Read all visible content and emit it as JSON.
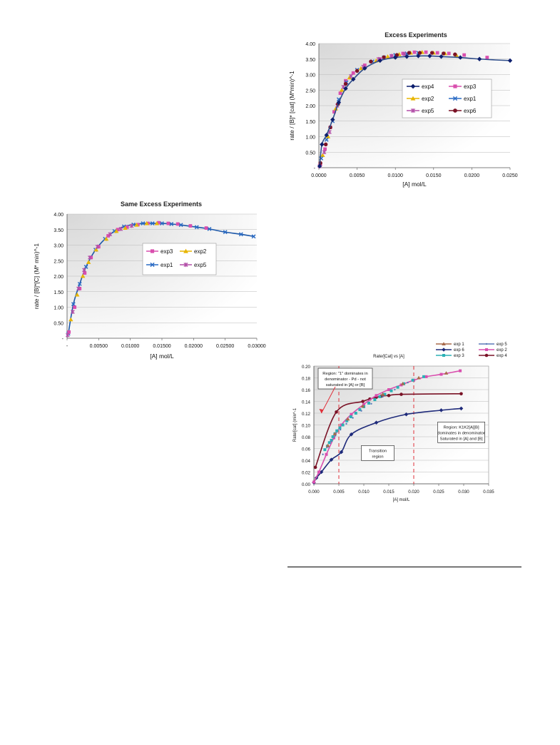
{
  "colors": {
    "exp1": "#2a6bc4",
    "exp2": "#e8b500",
    "exp3": "#d94fae",
    "exp4": "#0d1f6e",
    "exp5": "#b34fa8",
    "exp6": "#7a1226",
    "exp1_rate": "#a86a4a",
    "exp2_rate": "#d94fae",
    "exp3_rate": "#2bb0b5",
    "exp4_rate": "#7a1226",
    "exp5_rate": "#5b7ab8",
    "exp6_rate": "#1e2a7a",
    "excess_line": "#2e4d8a",
    "same_line": "#1c57a8",
    "annotation": "#e0303a",
    "plot_bg": "#d8d8d8"
  },
  "chart_data": [
    {
      "id": "excess",
      "type": "line",
      "title": "Excess Experiments",
      "xlabel": "[A] mol/L",
      "ylabel": "rate / [B]* [cat] (M*min)^-1",
      "xlim": [
        0,
        0.025
      ],
      "ylim": [
        0,
        4.0
      ],
      "xticks": [
        0,
        0.005,
        0.01,
        0.015,
        0.02,
        0.025
      ],
      "xtick_labels": [
        "0.0000",
        "0.0050",
        "0.0100",
        "0.0150",
        "0.0200",
        "0.0250"
      ],
      "yticks": [
        0,
        0.5,
        1.0,
        1.5,
        2.0,
        2.5,
        3.0,
        3.5,
        4.0
      ],
      "ytick_labels": [
        "-",
        "0.50",
        "1.00",
        "1.50",
        "2.00",
        "2.50",
        "3.00",
        "3.50",
        "4.00"
      ],
      "grid": true,
      "legend_position": "center-right",
      "legend": [
        {
          "label": "exp4",
          "color_key": "exp4",
          "marker": "diamond"
        },
        {
          "label": "exp3",
          "color_key": "exp3",
          "marker": "square"
        },
        {
          "label": "exp2",
          "color_key": "exp2",
          "marker": "triangle"
        },
        {
          "label": "exp1",
          "color_key": "exp1",
          "marker": "x"
        },
        {
          "label": "exp5",
          "color_key": "exp5",
          "marker": "star"
        },
        {
          "label": "exp6",
          "color_key": "exp6",
          "marker": "circle"
        }
      ],
      "series": [
        {
          "name": "exp3",
          "color_key": "exp3",
          "marker": "square",
          "x": [
            0.0002,
            0.0008,
            0.0015,
            0.002,
            0.0028,
            0.0035,
            0.0045,
            0.006,
            0.008,
            0.0095,
            0.011,
            0.0125,
            0.014,
            0.0155,
            0.017,
            0.019,
            0.022
          ],
          "y": [
            0.1,
            0.6,
            1.3,
            1.8,
            2.4,
            2.8,
            3.05,
            3.3,
            3.5,
            3.6,
            3.68,
            3.72,
            3.72,
            3.7,
            3.68,
            3.63,
            3.55
          ]
        },
        {
          "name": "exp2",
          "color_key": "exp2",
          "marker": "triangle",
          "x": [
            0.0005,
            0.0012,
            0.0022,
            0.003,
            0.004,
            0.0055,
            0.0075,
            0.009,
            0.0105,
            0.012,
            0.0135,
            0.015,
            0.0165,
            0.018
          ],
          "y": [
            0.4,
            1.0,
            1.9,
            2.5,
            2.9,
            3.2,
            3.45,
            3.58,
            3.65,
            3.7,
            3.72,
            3.7,
            3.68,
            3.62
          ]
        },
        {
          "name": "exp1",
          "color_key": "exp1",
          "marker": "x",
          "x": [
            0.0003,
            0.001,
            0.0018,
            0.0026,
            0.0036,
            0.005,
            0.007,
            0.0085,
            0.01,
            0.0115,
            0.013
          ],
          "y": [
            0.3,
            0.9,
            1.5,
            2.2,
            2.75,
            3.15,
            3.42,
            3.55,
            3.63,
            3.68,
            3.7
          ]
        },
        {
          "name": "exp5",
          "color_key": "exp5",
          "marker": "star",
          "x": [
            0.0001,
            0.0007,
            0.0014,
            0.0024,
            0.0032,
            0.0042,
            0.0058,
            0.0078,
            0.0095,
            0.0112
          ],
          "y": [
            0.05,
            0.5,
            1.15,
            2.0,
            2.6,
            2.95,
            3.25,
            3.5,
            3.6,
            3.66
          ]
        },
        {
          "name": "exp6",
          "color_key": "exp6",
          "marker": "circle",
          "x": [
            0.0002,
            0.0009,
            0.0015,
            0.0025,
            0.0035,
            0.005,
            0.0068,
            0.0085,
            0.0102,
            0.0118,
            0.0132,
            0.0148,
            0.0163,
            0.0178
          ],
          "y": [
            0.15,
            0.75,
            1.3,
            2.05,
            2.7,
            3.12,
            3.42,
            3.56,
            3.63,
            3.7,
            3.7,
            3.7,
            3.68,
            3.65
          ]
        },
        {
          "name": "exp4",
          "color_key": "exp4",
          "marker": "diamond",
          "line": true,
          "x": [
            0.0001,
            0.0004,
            0.001,
            0.0018,
            0.0026,
            0.0035,
            0.0045,
            0.006,
            0.008,
            0.01,
            0.0115,
            0.013,
            0.0145,
            0.016,
            0.0185,
            0.021,
            0.025
          ],
          "y": [
            0.05,
            0.75,
            1.05,
            1.55,
            2.1,
            2.55,
            2.85,
            3.2,
            3.45,
            3.55,
            3.58,
            3.6,
            3.6,
            3.58,
            3.55,
            3.5,
            3.45
          ]
        }
      ]
    },
    {
      "id": "same",
      "type": "line",
      "title": "Same Excess Experiments",
      "xlabel": "[A] mol/L",
      "ylabel": "rate / [B]*[C]  (M* min)^-1",
      "xlim": [
        0,
        0.03
      ],
      "ylim": [
        0,
        4.0
      ],
      "xticks": [
        0,
        0.005,
        0.01,
        0.015,
        0.02,
        0.025,
        0.03
      ],
      "xtick_labels": [
        "-",
        "0.00500",
        "0.01000",
        "0.01500",
        "0.02000",
        "0.02500",
        "0.03000"
      ],
      "yticks": [
        0,
        0.5,
        1.0,
        1.5,
        2.0,
        2.5,
        3.0,
        3.5,
        4.0
      ],
      "ytick_labels": [
        "-",
        "0.50",
        "1.00",
        "1.50",
        "2.00",
        "2.50",
        "3.00",
        "3.50",
        "4.00"
      ],
      "grid": true,
      "legend_position": "center-right",
      "legend": [
        {
          "label": "exp3",
          "color_key": "exp3",
          "marker": "square"
        },
        {
          "label": "exp2",
          "color_key": "exp2",
          "marker": "triangle"
        },
        {
          "label": "exp1",
          "color_key": "exp1",
          "marker": "x"
        },
        {
          "label": "exp5",
          "color_key": "exp5",
          "marker": "star"
        }
      ],
      "series": [
        {
          "name": "exp1",
          "color_key": "exp1",
          "marker": "x",
          "line": true,
          "x": [
            0.0002,
            0.001,
            0.002,
            0.003,
            0.0045,
            0.006,
            0.0075,
            0.009,
            0.0105,
            0.012,
            0.0135,
            0.015,
            0.0165,
            0.018,
            0.0205,
            0.0225,
            0.025,
            0.0275,
            0.0295
          ],
          "y": [
            0.15,
            1.1,
            1.75,
            2.3,
            2.85,
            3.2,
            3.45,
            3.6,
            3.66,
            3.7,
            3.7,
            3.7,
            3.68,
            3.65,
            3.58,
            3.52,
            3.42,
            3.35,
            3.28
          ]
        },
        {
          "name": "exp3",
          "color_key": "exp3",
          "marker": "square",
          "x": [
            0.0003,
            0.0012,
            0.002,
            0.0028,
            0.0038,
            0.005,
            0.0065,
            0.008,
            0.0095,
            0.0112,
            0.0128,
            0.0145,
            0.016,
            0.0175,
            0.0195,
            0.022
          ],
          "y": [
            0.2,
            1.0,
            1.6,
            2.1,
            2.6,
            2.95,
            3.3,
            3.5,
            3.58,
            3.66,
            3.7,
            3.72,
            3.7,
            3.68,
            3.62,
            3.55
          ]
        },
        {
          "name": "exp2",
          "color_key": "exp2",
          "marker": "triangle",
          "x": [
            0.0006,
            0.0016,
            0.0025,
            0.0034,
            0.0046,
            0.0062,
            0.0078,
            0.0092,
            0.011,
            0.0126,
            0.0142
          ],
          "y": [
            0.6,
            1.4,
            2.0,
            2.45,
            2.85,
            3.2,
            3.45,
            3.55,
            3.65,
            3.7,
            3.7
          ]
        },
        {
          "name": "exp5",
          "color_key": "exp5",
          "marker": "star",
          "x": [
            0.0001,
            0.0009,
            0.0018,
            0.0027,
            0.0036,
            0.0048,
            0.0068,
            0.0085,
            0.0102
          ],
          "y": [
            0.1,
            0.85,
            1.6,
            2.2,
            2.6,
            2.95,
            3.35,
            3.52,
            3.62
          ]
        }
      ]
    },
    {
      "id": "rate",
      "type": "line",
      "title": "Rate/[Cat] vs [A]",
      "xlabel": "[A] mol/L",
      "ylabel": "Rate/[cat] (min^-1",
      "xlim": [
        0,
        0.035
      ],
      "ylim": [
        0,
        0.2
      ],
      "xticks": [
        0,
        0.005,
        0.01,
        0.015,
        0.02,
        0.025,
        0.03,
        0.035
      ],
      "xtick_labels": [
        "0.000",
        "0.005",
        "0.010",
        "0.015",
        "0.020",
        "0.025",
        "0.030",
        "0.035"
      ],
      "yticks": [
        0,
        0.02,
        0.04,
        0.06,
        0.08,
        0.1,
        0.12,
        0.14,
        0.16,
        0.18,
        0.2
      ],
      "ytick_labels": [
        "0.00",
        "0.02",
        "0.04",
        "0.06",
        "0.08",
        "0.10",
        "0.12",
        "0.14",
        "0.16",
        "0.18",
        "0.20"
      ],
      "grid": true,
      "legend_position": "top-right",
      "legend": [
        {
          "label": "exp 1",
          "color_key": "exp1_rate",
          "marker": "triangle"
        },
        {
          "label": "exp 5",
          "color_key": "exp5_rate",
          "marker": "dot"
        },
        {
          "label": "exp 6",
          "color_key": "exp6_rate",
          "marker": "diamond"
        },
        {
          "label": "exp 2",
          "color_key": "exp2_rate",
          "marker": "square"
        },
        {
          "label": "exp 3",
          "color_key": "exp3_rate",
          "marker": "square"
        },
        {
          "label": "exp 4",
          "color_key": "exp4_rate",
          "marker": "circle"
        }
      ],
      "series": [
        {
          "name": "exp 6",
          "color_key": "exp6_rate",
          "marker": "diamond",
          "line": true,
          "x": [
            0.0,
            0.0005,
            0.0015,
            0.0035,
            0.0055,
            0.0075,
            0.0125,
            0.0185,
            0.0255,
            0.0295
          ],
          "y": [
            0.002,
            0.01,
            0.02,
            0.041,
            0.054,
            0.084,
            0.104,
            0.118,
            0.125,
            0.128
          ]
        },
        {
          "name": "exp 4",
          "color_key": "exp4_rate",
          "marker": "circle",
          "line": true,
          "x": [
            0.0003,
            0.0045,
            0.0098,
            0.0112,
            0.0125,
            0.0135,
            0.015,
            0.0175,
            0.0295
          ],
          "y": [
            0.028,
            0.122,
            0.14,
            0.144,
            0.147,
            0.149,
            0.15,
            0.152,
            0.153
          ]
        },
        {
          "name": "exp 2",
          "color_key": "exp2_rate",
          "marker": "square",
          "line": true,
          "x": [
            0.0,
            0.001,
            0.0025,
            0.004,
            0.0055,
            0.0075,
            0.01,
            0.0125,
            0.015,
            0.0175,
            0.02,
            0.0225,
            0.0255,
            0.0293
          ],
          "y": [
            0.003,
            0.02,
            0.05,
            0.078,
            0.1,
            0.118,
            0.135,
            0.15,
            0.16,
            0.168,
            0.176,
            0.182,
            0.186,
            0.192
          ]
        },
        {
          "name": "exp 3",
          "color_key": "exp3_rate",
          "marker": "square",
          "x": [
            0.0022,
            0.0027,
            0.0031,
            0.0035,
            0.0038,
            0.0042,
            0.0046,
            0.0052,
            0.0058,
            0.0066,
            0.0074,
            0.0084,
            0.0092,
            0.01,
            0.011,
            0.0122,
            0.0132,
            0.0142,
            0.0155,
            0.0168,
            0.018,
            0.0198,
            0.022
          ],
          "y": [
            0.058,
            0.064,
            0.07,
            0.074,
            0.08,
            0.085,
            0.09,
            0.095,
            0.1,
            0.107,
            0.114,
            0.12,
            0.126,
            0.131,
            0.137,
            0.143,
            0.148,
            0.152,
            0.158,
            0.164,
            0.17,
            0.176,
            0.182
          ]
        },
        {
          "name": "exp 5",
          "color_key": "exp5_rate",
          "marker": "dot",
          "x": [
            0.0018,
            0.0026,
            0.0034,
            0.0043,
            0.0053,
            0.0065,
            0.0078,
            0.0095,
            0.0115,
            0.0138,
            0.0162,
            0.0188
          ],
          "y": [
            0.05,
            0.062,
            0.072,
            0.082,
            0.092,
            0.102,
            0.112,
            0.124,
            0.136,
            0.148,
            0.16,
            0.172
          ]
        },
        {
          "name": "exp 1",
          "color_key": "exp1_rate",
          "marker": "triangle",
          "x": [
            0.0028,
            0.0042,
            0.0068,
            0.0098,
            0.0138,
            0.0178,
            0.021,
            0.0265
          ],
          "y": [
            0.065,
            0.085,
            0.11,
            0.132,
            0.152,
            0.17,
            0.18,
            0.188
          ]
        }
      ],
      "vlines": [
        0.005,
        0.02
      ],
      "annotations": {
        "region_left": [
          "Region: \"1\" dominates in",
          "denominator - Pd - not",
          "saturated in [A] or [B]"
        ],
        "region_mid": [
          "Transition",
          "region"
        ],
        "region_right": [
          "Region: K1K2[A][B]",
          "dominates in denominator",
          "Saturated in [A] and [B]"
        ]
      }
    }
  ]
}
